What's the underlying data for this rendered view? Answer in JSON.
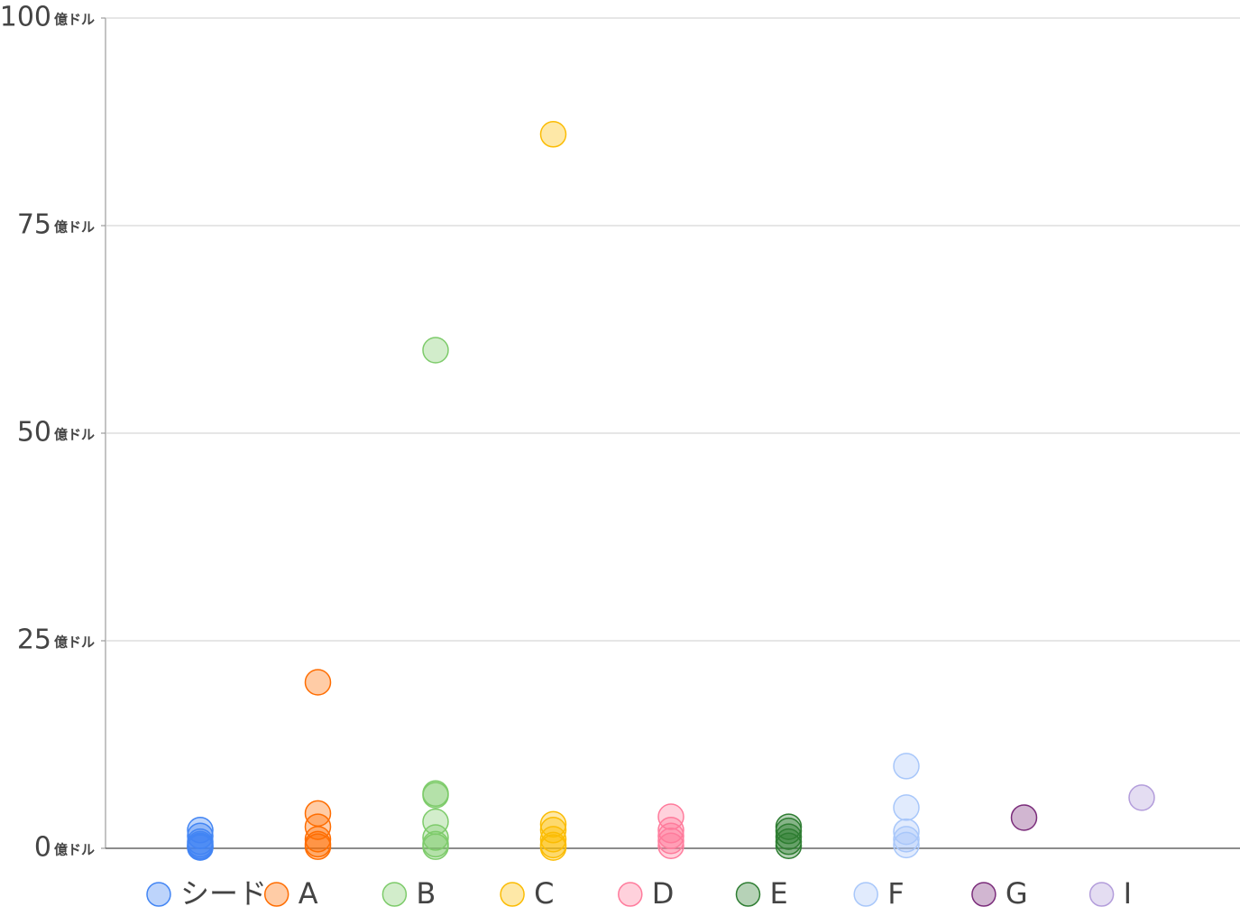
{
  "chart_data": {
    "type": "scatter",
    "y_unit": "億ドル",
    "ylim": [
      0,
      100
    ],
    "yticks": [
      0,
      25,
      50,
      75,
      100
    ],
    "grid": true,
    "series": [
      {
        "name": "シード",
        "color": "#4285f4",
        "values": [
          2.2,
          1.5,
          0.8,
          0.5,
          0.3,
          0.2,
          0.1
        ]
      },
      {
        "name": "A",
        "color": "#ff6d01",
        "values": [
          20,
          4.2,
          2.6,
          1.1,
          0.5,
          0.2
        ]
      },
      {
        "name": "B",
        "color": "#7dcb6a",
        "values": [
          60,
          6.6,
          6.4,
          3.2,
          1.3,
          0.5,
          0.2
        ]
      },
      {
        "name": "C",
        "color": "#fbbc04",
        "values": [
          86,
          2.9,
          2.2,
          1.1,
          0.4,
          0.1
        ]
      },
      {
        "name": "D",
        "color": "#ff7b9c",
        "values": [
          3.8,
          2.2,
          1.5,
          0.9,
          0.3
        ]
      },
      {
        "name": "E",
        "color": "#2e7d32",
        "values": [
          2.6,
          2.1,
          1.4,
          0.8,
          0.3
        ]
      },
      {
        "name": "F",
        "color": "#a8c7fa",
        "values": [
          9.9,
          4.9,
          2.0,
          1.1,
          0.4
        ]
      },
      {
        "name": "G",
        "color": "#7b2d7b",
        "values": [
          3.7
        ]
      },
      {
        "name": "I",
        "color": "#b39ddb",
        "values": [
          6.1
        ]
      }
    ]
  }
}
